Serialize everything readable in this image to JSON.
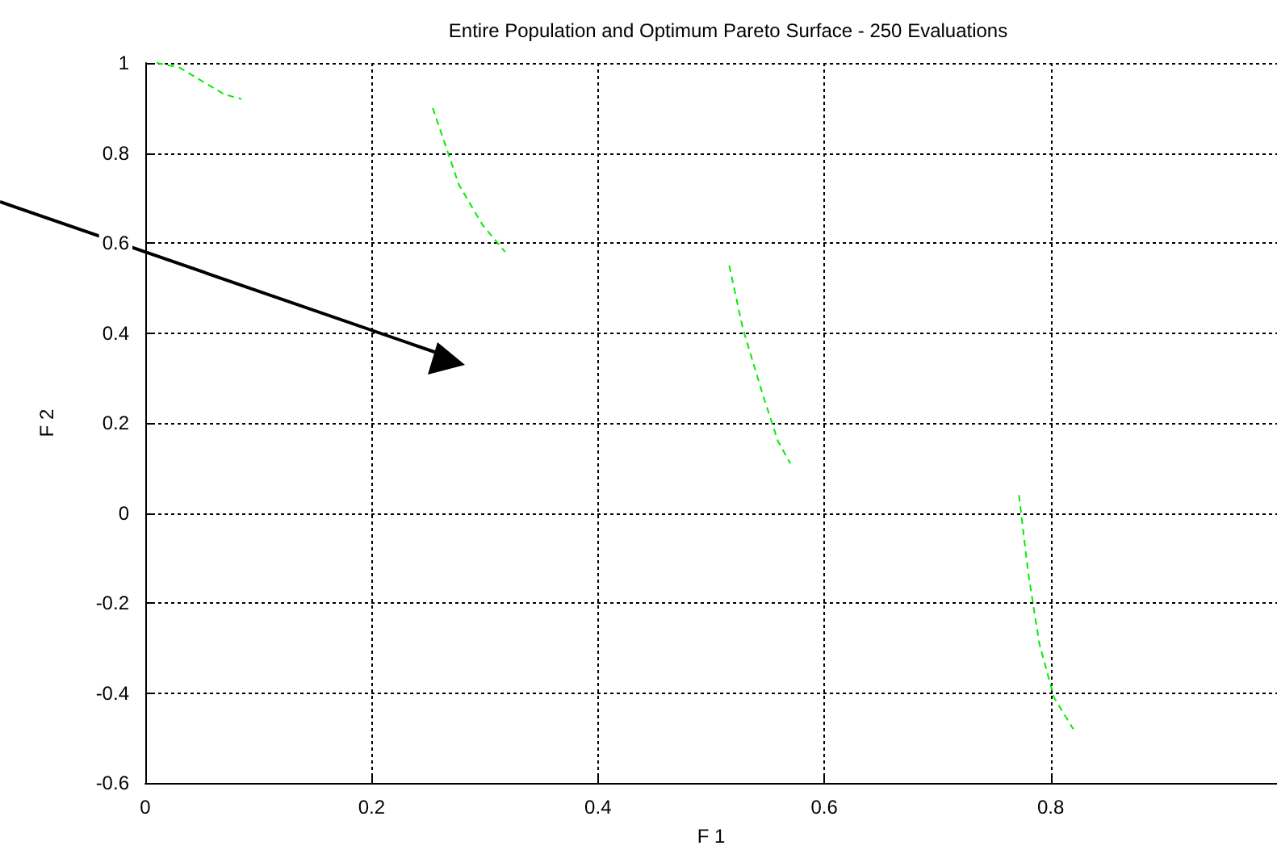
{
  "chart_data": {
    "type": "line",
    "title": "Entire Population and Optimum Pareto Surface - 250 Evaluations",
    "xlabel": "F 1",
    "ylabel": "F 2",
    "series": [
      {
        "color": "#00ee00",
        "x": [
          0.01,
          0.03,
          0.05,
          0.07,
          0.085,
          null,
          0.254,
          0.277,
          0.298,
          0.318,
          null,
          0.516,
          0.528,
          0.546,
          0.559,
          0.57,
          null,
          0.772,
          0.78,
          0.79,
          0.803,
          0.82
        ],
        "values": [
          1.0,
          0.99,
          0.96,
          0.93,
          0.92,
          null,
          0.9,
          0.73,
          0.64,
          0.58,
          null,
          0.55,
          0.41,
          0.26,
          0.16,
          0.11,
          null,
          0.04,
          -0.13,
          -0.29,
          -0.41,
          -0.48
        ]
      }
    ],
    "xlim": [
      0,
      1
    ],
    "xticks": [
      0,
      0.2,
      0.4,
      0.6,
      0.8
    ],
    "ylim": [
      -0.6,
      1
    ],
    "yticks": [
      -0.6,
      -0.4,
      -0.2,
      0,
      0.2,
      0.4,
      0.6,
      0.8,
      1
    ],
    "grid": true,
    "marker": "none",
    "line_style": "dashed"
  }
}
